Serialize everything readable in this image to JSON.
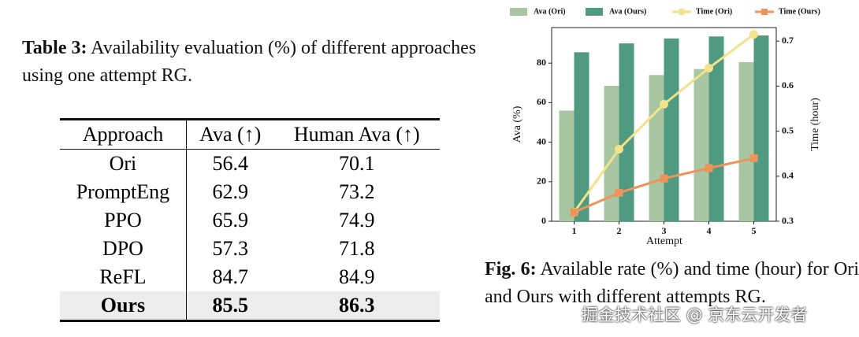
{
  "table": {
    "label": "Table 3:",
    "caption": "Availability evaluation (%) of different approaches using one attempt RG.",
    "header": [
      "Approach",
      "Ava (↑)",
      "Human Ava (↑)"
    ],
    "rows": [
      [
        "Ori",
        56.4,
        70.1
      ],
      [
        "PromptEng",
        62.9,
        73.2
      ],
      [
        "PPO",
        65.9,
        74.9
      ],
      [
        "DPO",
        57.3,
        71.8
      ],
      [
        "ReFL",
        84.7,
        84.9
      ],
      [
        "Ours",
        85.5,
        86.3
      ]
    ]
  },
  "chart_data": {
    "type": "bar",
    "xlabel": "Attempt",
    "ylabel": "Ava (%)",
    "y2label": "Time (hour)",
    "categories": [
      "1",
      "2",
      "3",
      "4",
      "5"
    ],
    "series": [
      {
        "name": "Ava (Ori)",
        "type": "bar",
        "color": "#a9c6a2",
        "values": [
          56,
          68.5,
          74,
          77,
          80.5
        ]
      },
      {
        "name": "Ava (Ours)",
        "type": "bar",
        "color": "#4f9a80",
        "values": [
          85.5,
          90,
          92.5,
          93.5,
          94
        ]
      },
      {
        "name": "Time (Ori)",
        "type": "line",
        "marker": "circle",
        "axis": "y2",
        "color": "#f2e28a",
        "values": [
          0.32,
          0.46,
          0.56,
          0.64,
          0.715
        ]
      },
      {
        "name": "Time (Ours)",
        "type": "line",
        "marker": "square",
        "axis": "y2",
        "color": "#f0935a",
        "values": [
          0.32,
          0.363,
          0.395,
          0.418,
          0.44
        ]
      }
    ],
    "ylim": [
      0,
      98
    ],
    "yticks": [
      0,
      20,
      40,
      60,
      80
    ],
    "y2lim": [
      0.3,
      0.73
    ],
    "y2ticks": [
      0.3,
      0.4,
      0.5,
      0.6,
      0.7
    ]
  },
  "figure": {
    "label": "Fig. 6:",
    "caption": "Available rate (%) and time (hour) for Ori and Ours with different attempts RG."
  },
  "watermark": "掘金技术社区 @ 京东云开发者"
}
